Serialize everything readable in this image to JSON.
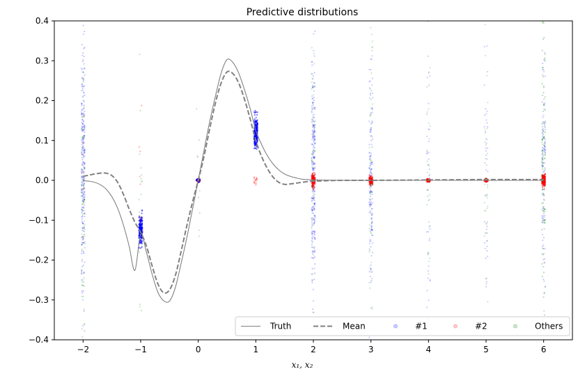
{
  "chart_data": {
    "type": "scatter",
    "title": "Predictive distributions",
    "xlabel": "x₁, x₂",
    "ylabel": "",
    "xlim": [
      -2.5,
      6.5
    ],
    "ylim": [
      -0.4,
      0.4
    ],
    "xticks": [
      -2,
      -1,
      0,
      1,
      2,
      3,
      4,
      5,
      6
    ],
    "xtick_labels": [
      "−2",
      "−1",
      "0",
      "1",
      "2",
      "3",
      "4",
      "5",
      "6"
    ],
    "yticks": [
      -0.4,
      -0.3,
      -0.2,
      -0.1,
      0.0,
      0.1,
      0.2,
      0.3,
      0.4
    ],
    "ytick_labels": [
      "−0.4",
      "−0.3",
      "−0.2",
      "−0.1",
      "0.0",
      "0.1",
      "0.2",
      "0.3",
      "0.4"
    ],
    "grid": false,
    "legend_position": "lower-right",
    "series": [
      {
        "name": "Truth",
        "kind": "line",
        "style": "solid",
        "color": "#808080",
        "x": [
          -2.0,
          -1.9,
          -1.8,
          -1.7,
          -1.6,
          -1.5,
          -1.4,
          -1.3,
          -1.2,
          -1.1,
          -1.0,
          -0.9,
          -0.8,
          -0.7,
          -0.6,
          -0.5,
          -0.4,
          -0.3,
          -0.2,
          -0.1,
          0.0,
          0.1,
          0.2,
          0.3,
          0.4,
          0.5,
          0.6,
          0.7,
          0.8,
          0.9,
          1.0,
          1.1,
          1.2,
          1.3,
          1.4,
          1.5,
          1.6,
          1.7,
          1.8,
          1.9,
          2.0,
          2.5,
          3.0,
          4.0,
          5.0,
          6.0
        ],
        "y": [
          -0.001,
          -0.002,
          -0.005,
          -0.011,
          -0.022,
          -0.041,
          -0.07,
          -0.112,
          -0.165,
          -0.226,
          -0.135,
          -0.18,
          -0.236,
          -0.281,
          -0.302,
          -0.303,
          -0.27,
          -0.21,
          -0.145,
          -0.073,
          0.0,
          0.075,
          0.148,
          0.212,
          0.27,
          0.303,
          0.296,
          0.27,
          0.229,
          0.181,
          0.125,
          0.09,
          0.062,
          0.041,
          0.026,
          0.016,
          0.01,
          0.006,
          0.003,
          0.002,
          0.001,
          0.0,
          0.0,
          0.0,
          0.0,
          0.0
        ]
      },
      {
        "name": "Mean",
        "kind": "line",
        "style": "dashed",
        "color": "#808080",
        "x": [
          -2.0,
          -1.9,
          -1.8,
          -1.7,
          -1.6,
          -1.5,
          -1.4,
          -1.3,
          -1.2,
          -1.1,
          -1.0,
          -0.9,
          -0.8,
          -0.7,
          -0.6,
          -0.5,
          -0.4,
          -0.3,
          -0.2,
          -0.1,
          0.0,
          0.1,
          0.2,
          0.3,
          0.4,
          0.5,
          0.6,
          0.7,
          0.8,
          0.9,
          1.0,
          1.1,
          1.2,
          1.3,
          1.4,
          1.5,
          1.6,
          1.7,
          1.8,
          1.9,
          2.0,
          2.2,
          2.5,
          3.0,
          4.0,
          5.0,
          6.0
        ],
        "y": [
          0.01,
          0.013,
          0.016,
          0.018,
          0.018,
          0.012,
          -0.005,
          -0.035,
          -0.072,
          -0.105,
          -0.13,
          -0.165,
          -0.215,
          -0.26,
          -0.282,
          -0.275,
          -0.24,
          -0.18,
          -0.115,
          -0.055,
          0.0,
          0.06,
          0.13,
          0.195,
          0.245,
          0.272,
          0.268,
          0.245,
          0.205,
          0.155,
          0.1,
          0.06,
          0.03,
          0.008,
          -0.005,
          -0.01,
          -0.009,
          -0.007,
          -0.005,
          -0.003,
          -0.002,
          -0.001,
          0.0,
          0.0,
          0.001,
          0.002,
          0.002
        ]
      },
      {
        "name": "#1",
        "kind": "scatter",
        "color": "#0000ff"
      },
      {
        "name": "#2",
        "kind": "scatter",
        "color": "#ff0000"
      },
      {
        "name": "Others",
        "kind": "scatter",
        "color": "#008000"
      }
    ],
    "scatter_clusters": [
      {
        "series": "#1",
        "x": -2,
        "center": 0.05,
        "sd": 0.15,
        "count": 260,
        "alpha": 0.22
      },
      {
        "series": "#1",
        "x": -1,
        "center": -0.125,
        "sd": 0.018,
        "count": 220,
        "alpha": 0.55
      },
      {
        "series": "#1",
        "x": 0,
        "center": 0.0,
        "sd": 0.0015,
        "count": 120,
        "alpha": 0.9
      },
      {
        "series": "#1",
        "x": 1,
        "center": 0.12,
        "sd": 0.02,
        "count": 240,
        "alpha": 0.55
      },
      {
        "series": "#1",
        "x": 2,
        "center": 0.0,
        "sd": 0.16,
        "count": 260,
        "alpha": 0.22
      },
      {
        "series": "#1",
        "x": 3,
        "center": 0.0,
        "sd": 0.15,
        "count": 160,
        "alpha": 0.2
      },
      {
        "series": "#1",
        "x": 4,
        "center": 0.0,
        "sd": 0.2,
        "count": 40,
        "alpha": 0.2
      },
      {
        "series": "#1",
        "x": 5,
        "center": 0.0,
        "sd": 0.2,
        "count": 40,
        "alpha": 0.2
      },
      {
        "series": "#1",
        "x": 6,
        "center": 0.0,
        "sd": 0.15,
        "count": 120,
        "alpha": 0.2
      },
      {
        "series": "#2",
        "x": -2,
        "center": 0.0,
        "sd": 0.1,
        "count": 6,
        "alpha": 0.3
      },
      {
        "series": "#2",
        "x": -1,
        "center": 0.0,
        "sd": 0.1,
        "count": 8,
        "alpha": 0.3
      },
      {
        "series": "#2",
        "x": 0,
        "center": 0.0,
        "sd": 0.006,
        "count": 10,
        "alpha": 0.4
      },
      {
        "series": "#2",
        "x": 1,
        "center": 0.0,
        "sd": 0.006,
        "count": 14,
        "alpha": 0.35
      },
      {
        "series": "#2",
        "x": 2,
        "center": 0.0,
        "sd": 0.008,
        "count": 140,
        "alpha": 0.45
      },
      {
        "series": "#2",
        "x": 3,
        "center": 0.0,
        "sd": 0.005,
        "count": 140,
        "alpha": 0.5
      },
      {
        "series": "#2",
        "x": 4,
        "center": 0.0,
        "sd": 0.0015,
        "count": 120,
        "alpha": 0.7
      },
      {
        "series": "#2",
        "x": 5,
        "center": 0.0,
        "sd": 0.0015,
        "count": 120,
        "alpha": 0.7
      },
      {
        "series": "#2",
        "x": 6,
        "center": 0.0,
        "sd": 0.007,
        "count": 160,
        "alpha": 0.5
      },
      {
        "series": "Others",
        "x": -2,
        "center": -0.05,
        "sd": 0.15,
        "count": 90,
        "alpha": 0.22
      },
      {
        "series": "Others",
        "x": -1,
        "center": -0.05,
        "sd": 0.15,
        "count": 20,
        "alpha": 0.22
      },
      {
        "series": "Others",
        "x": 0,
        "center": 0.0,
        "sd": 0.15,
        "count": 10,
        "alpha": 0.22
      },
      {
        "series": "Others",
        "x": 2,
        "center": 0.0,
        "sd": 0.18,
        "count": 60,
        "alpha": 0.2
      },
      {
        "series": "Others",
        "x": 3,
        "center": 0.0,
        "sd": 0.18,
        "count": 60,
        "alpha": 0.2
      },
      {
        "series": "Others",
        "x": 4,
        "center": 0.0,
        "sd": 0.2,
        "count": 30,
        "alpha": 0.2
      },
      {
        "series": "Others",
        "x": 5,
        "center": 0.0,
        "sd": 0.2,
        "count": 40,
        "alpha": 0.2
      },
      {
        "series": "Others",
        "x": 6,
        "center": 0.0,
        "sd": 0.18,
        "count": 110,
        "alpha": 0.28
      }
    ]
  }
}
